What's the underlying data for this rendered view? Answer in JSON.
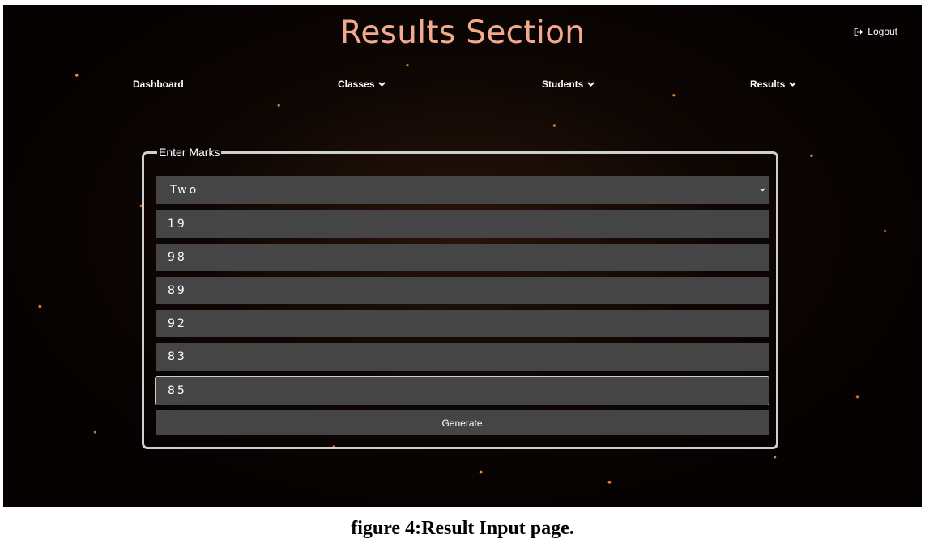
{
  "header": {
    "title": "Results Section",
    "logout_label": "Logout",
    "logout_icon": "sign-out-icon"
  },
  "nav": {
    "items": [
      {
        "label": "Dashboard",
        "has_dropdown": false
      },
      {
        "label": "Classes",
        "has_dropdown": true
      },
      {
        "label": "Students",
        "has_dropdown": true
      },
      {
        "label": "Results",
        "has_dropdown": true
      }
    ]
  },
  "form": {
    "legend": "Enter Marks",
    "class_select_value": "Two",
    "marks": [
      "19",
      "98",
      "89",
      "92",
      "83",
      "85"
    ],
    "generate_label": "Generate"
  },
  "caption": "figure 4:Result Input page.",
  "colors": {
    "title": "#f3a98e",
    "field_bg": "#454545",
    "panel_border": "#cfcfcf",
    "background": "#050201"
  }
}
